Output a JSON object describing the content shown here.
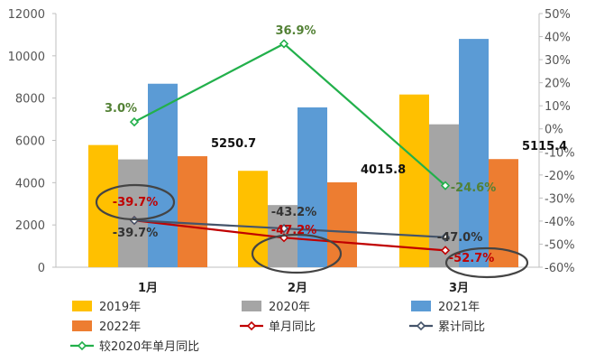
{
  "chart_data": {
    "type": "bar",
    "categories": [
      "1月",
      "2月",
      "3月"
    ],
    "left_axis": {
      "min": 0,
      "max": 12000,
      "step": 2000
    },
    "right_axis": {
      "min": -60,
      "max": 50,
      "step": 10,
      "unit": "%"
    },
    "bar_series": [
      {
        "name": "2019年",
        "color": "#FFC000",
        "values": [
          5780,
          4560,
          8170
        ]
      },
      {
        "name": "2020年",
        "color": "#A5A5A5",
        "values": [
          5100,
          2940,
          6760
        ]
      },
      {
        "name": "2021年",
        "color": "#5B9BD5",
        "values": [
          8680,
          7560,
          10800
        ]
      },
      {
        "name": "2022年",
        "color": "#ED7D31",
        "values": [
          5250.7,
          4015.8,
          5115.4
        ]
      }
    ],
    "bar_labels": [
      "5250.7",
      "4015.8",
      "5115.4"
    ],
    "line_series": [
      {
        "name": "单月同比",
        "color": "#C00000",
        "values": [
          -39.7,
          -47.2,
          -52.7
        ],
        "labels": [
          "-39.7%",
          "-47.2%",
          "-52.7%"
        ]
      },
      {
        "name": "累计同比",
        "color": "#44546A",
        "values": [
          -39.7,
          -43.2,
          -47.0
        ],
        "labels": [
          "-39.7%",
          "-43.2%",
          "-47.0%"
        ]
      },
      {
        "name": "较2020年单月同比",
        "color": "#22B04B",
        "values": [
          3.0,
          36.9,
          -24.6
        ],
        "labels": [
          "3.0%",
          "36.9%",
          "-24.6%"
        ]
      }
    ],
    "legend_position": "bottom",
    "grid": false
  }
}
